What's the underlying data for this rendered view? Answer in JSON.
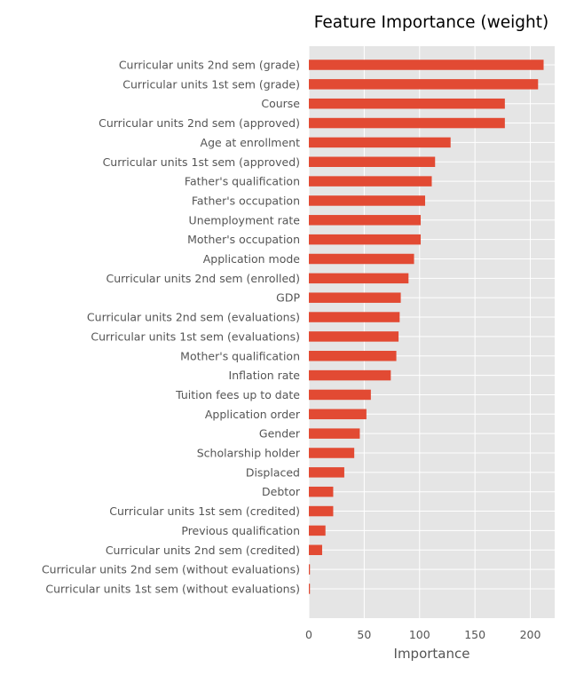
{
  "chart_data": {
    "type": "bar",
    "orientation": "horizontal",
    "title": "Feature Importance (weight)",
    "xlabel": "Importance",
    "ylabel": "",
    "xlim": [
      0,
      222
    ],
    "xticks": [
      0,
      50,
      100,
      150,
      200
    ],
    "grid": true,
    "bar_color": "#E24A33",
    "background_color": "#E5E5E5",
    "grid_color": "#FFFFFF",
    "categories": [
      "Curricular units 2nd sem (grade)",
      "Curricular units 1st sem (grade)",
      "Course",
      "Curricular units 2nd sem (approved)",
      "Age at enrollment",
      "Curricular units 1st sem (approved)",
      "Father's qualification",
      "Father's occupation",
      "Unemployment rate",
      "Mother's occupation",
      "Application mode",
      "Curricular units 2nd sem (enrolled)",
      "GDP",
      "Curricular units 2nd sem (evaluations)",
      "Curricular units 1st sem (evaluations)",
      "Mother's qualification",
      "Inflation rate",
      "Tuition fees up to date",
      "Application order",
      "Gender",
      "Scholarship holder",
      "Displaced",
      "Debtor",
      "Curricular units 1st sem (credited)",
      "Previous qualification",
      "Curricular units 2nd sem (credited)",
      "Curricular units 2nd sem (without evaluations)",
      "Curricular units 1st sem (without evaluations)"
    ],
    "values": [
      212,
      207,
      177,
      177,
      128,
      114,
      111,
      105,
      101,
      101,
      95,
      90,
      83,
      82,
      81,
      79,
      74,
      56,
      52,
      46,
      41,
      32,
      22,
      22,
      15,
      12,
      1,
      1
    ]
  }
}
